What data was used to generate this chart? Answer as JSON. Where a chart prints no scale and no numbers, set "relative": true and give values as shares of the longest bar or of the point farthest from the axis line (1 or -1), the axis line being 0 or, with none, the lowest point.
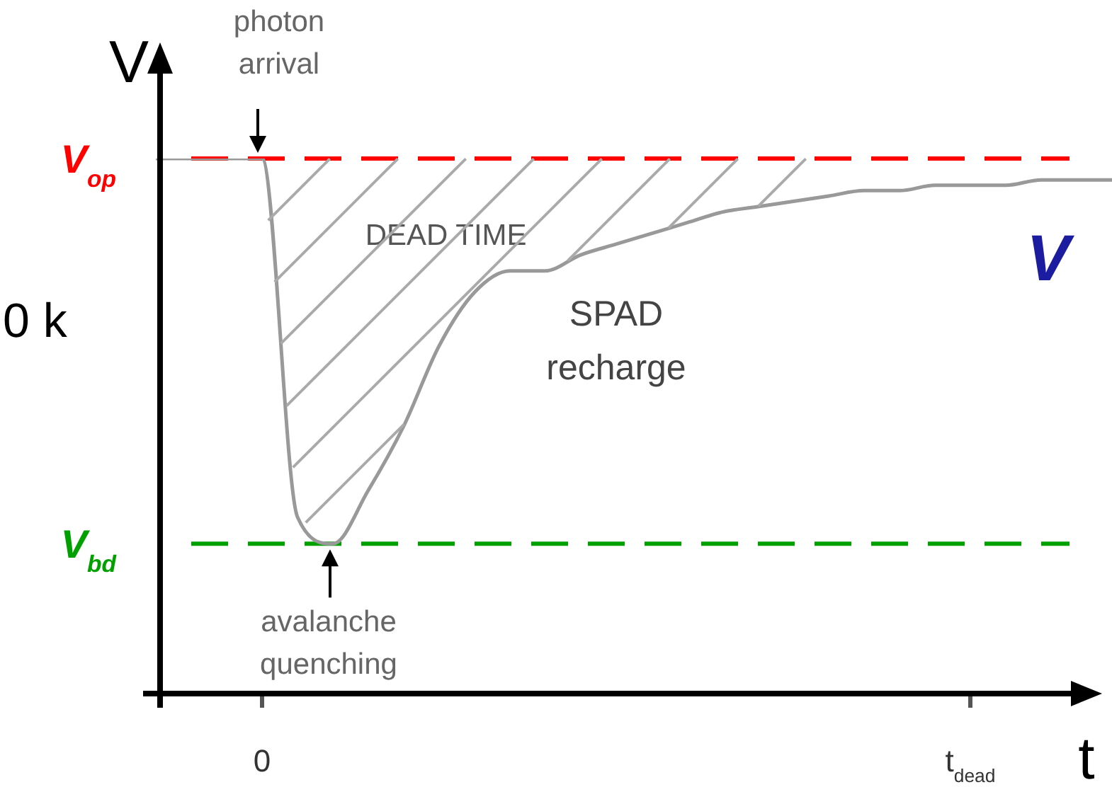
{
  "chart_data": {
    "type": "line",
    "relative": true,
    "xlabel": "t",
    "ylabel": "V",
    "categories": [
      null,
      null,
      null,
      "0",
      null,
      null,
      null,
      null,
      null,
      null,
      null,
      null,
      null,
      null,
      null,
      null,
      null,
      null,
      null,
      null,
      null,
      null,
      null,
      "t$_{dead}$",
      null,
      null,
      null,
      null
    ],
    "series": [
      {
        "name": "V",
        "color": "#999999",
        "values": [
          1,
          1,
          1,
          1,
          0.33,
          0.28,
          0.38,
          0.5,
          0.65,
          0.75,
          0.79,
          0.79,
          0.82,
          0.84,
          0.86,
          0.88,
          0.9,
          0.91,
          0.92,
          0.93,
          0.94,
          0.94,
          0.95,
          0.95,
          0.95,
          0.96,
          0.96,
          0.96
        ]
      }
    ],
    "ref_lines": [
      {
        "axis": "y",
        "value": 1,
        "label": "V$_{op}$",
        "color": "#ff0000",
        "line_style": "dashed"
      },
      {
        "axis": "y",
        "value": 0.28,
        "label": "V$_{bd}$",
        "color": "#00a000",
        "line_style": "dashed"
      }
    ],
    "annotations": [
      {
        "text": "photon arrival",
        "x": "0",
        "y": 1
      },
      {
        "text": "avalanche quenching",
        "y": 0.28
      },
      "DEAD TIME",
      "SPAD recharge",
      "0 k"
    ],
    "tick_labels": "x",
    "grid": false,
    "legend": false,
    "marker": "none",
    "line_style": "solid"
  }
}
